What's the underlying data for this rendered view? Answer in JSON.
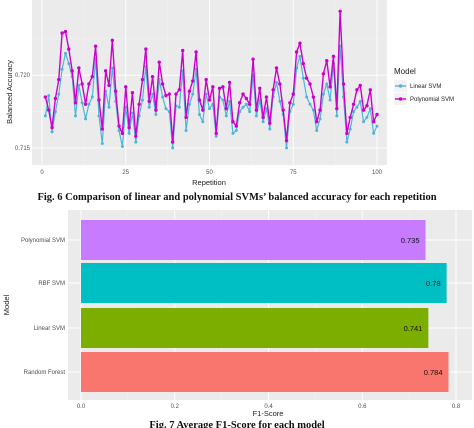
{
  "captions": {
    "fig6": "Fig. 6 Comparison of linear and polynomial SVMs’ balanced accuracy for each repetition",
    "fig7": "Fig. 7 Average F1-Score for each model"
  },
  "chart_data": [
    {
      "type": "line",
      "xlabel": "Repetition",
      "ylabel": "Balanced Accuracy",
      "xlim": [
        0,
        100
      ],
      "x_ticks": [
        "0",
        "25",
        "50",
        "75",
        "100"
      ],
      "y_ticks": [
        "0.720",
        "0.715"
      ],
      "legend_title": "Model",
      "legend_position": "right",
      "grid": true,
      "series": [
        {
          "name": "Linear SVM",
          "color": "#4db6d6",
          "values": [
            0.7172,
            0.7186,
            0.7161,
            0.7175,
            0.7187,
            0.7204,
            0.7215,
            0.7208,
            0.7199,
            0.7172,
            0.7193,
            0.7181,
            0.717,
            0.718,
            0.7185,
            0.7211,
            0.7172,
            0.7153,
            0.7189,
            0.7178,
            0.7205,
            0.7182,
            0.7162,
            0.7151,
            0.7178,
            0.716,
            0.7174,
            0.7154,
            0.7172,
            0.7183,
            0.7206,
            0.7178,
            0.7187,
            0.7173,
            0.7197,
            0.7185,
            0.7177,
            0.7175,
            0.715,
            0.7179,
            0.7178,
            0.7203,
            0.7162,
            0.718,
            0.7187,
            0.7204,
            0.7173,
            0.7168,
            0.7187,
            0.7177,
            0.718,
            0.7158,
            0.7185,
            0.7183,
            0.7172,
            0.7182,
            0.716,
            0.7162,
            0.7175,
            0.7178,
            0.718,
            0.7175,
            0.72,
            0.7172,
            0.7183,
            0.7168,
            0.7177,
            0.7163,
            0.7185,
            0.7195,
            0.7182,
            0.7173,
            0.715,
            0.7175,
            0.718,
            0.7205,
            0.7213,
            0.7198,
            0.7185,
            0.718,
            0.7176,
            0.7162,
            0.717,
            0.7187,
            0.7194,
            0.7183,
            0.7208,
            0.7172,
            0.722,
            0.7185,
            0.7154,
            0.7163,
            0.7175,
            0.7178,
            0.7182,
            0.7168,
            0.7171,
            0.7177,
            0.716,
            0.7165
          ]
        },
        {
          "name": "Polynomial SVM",
          "color": "#cc00cc",
          "values": [
            0.7185,
            0.7176,
            0.7164,
            0.7184,
            0.7197,
            0.7229,
            0.723,
            0.7218,
            0.7203,
            0.7181,
            0.7205,
            0.7194,
            0.718,
            0.7194,
            0.7199,
            0.722,
            0.7183,
            0.7163,
            0.7203,
            0.7193,
            0.7224,
            0.7189,
            0.7165,
            0.716,
            0.7192,
            0.7164,
            0.7188,
            0.7158,
            0.718,
            0.7197,
            0.7218,
            0.7182,
            0.7199,
            0.7176,
            0.7209,
            0.7194,
            0.7186,
            0.7187,
            0.7154,
            0.7187,
            0.719,
            0.7217,
            0.7171,
            0.7189,
            0.7196,
            0.7216,
            0.7183,
            0.7176,
            0.7197,
            0.7183,
            0.7192,
            0.716,
            0.7191,
            0.7192,
            0.7177,
            0.7195,
            0.7168,
            0.7165,
            0.7181,
            0.7187,
            0.7184,
            0.718,
            0.7211,
            0.7176,
            0.7191,
            0.7171,
            0.7185,
            0.7167,
            0.719,
            0.7205,
            0.7194,
            0.7176,
            0.7155,
            0.7181,
            0.7187,
            0.7216,
            0.7222,
            0.7208,
            0.7198,
            0.7194,
            0.7185,
            0.7168,
            0.7176,
            0.7201,
            0.721,
            0.7192,
            0.7213,
            0.7177,
            0.7244,
            0.7194,
            0.716,
            0.7171,
            0.718,
            0.719,
            0.7193,
            0.7176,
            0.7179,
            0.719,
            0.7168,
            0.7173
          ]
        }
      ]
    },
    {
      "type": "bar",
      "orientation": "horizontal",
      "xlabel": "F1-Score",
      "ylabel": "Model",
      "xlim": [
        0,
        0.8
      ],
      "x_ticks": [
        "0.0",
        "0.2",
        "0.4",
        "0.6",
        "0.8"
      ],
      "categories": [
        "Polynomial SVM",
        "RBF SVM",
        "Linear SVM",
        "Random Forest"
      ],
      "values": [
        0.735,
        0.78,
        0.741,
        0.784
      ],
      "value_labels": [
        "0.735",
        "0.78",
        "0.741",
        "0.784"
      ],
      "colors": [
        "#c77cff",
        "#00bfc4",
        "#7cae00",
        "#f8766d"
      ]
    }
  ]
}
